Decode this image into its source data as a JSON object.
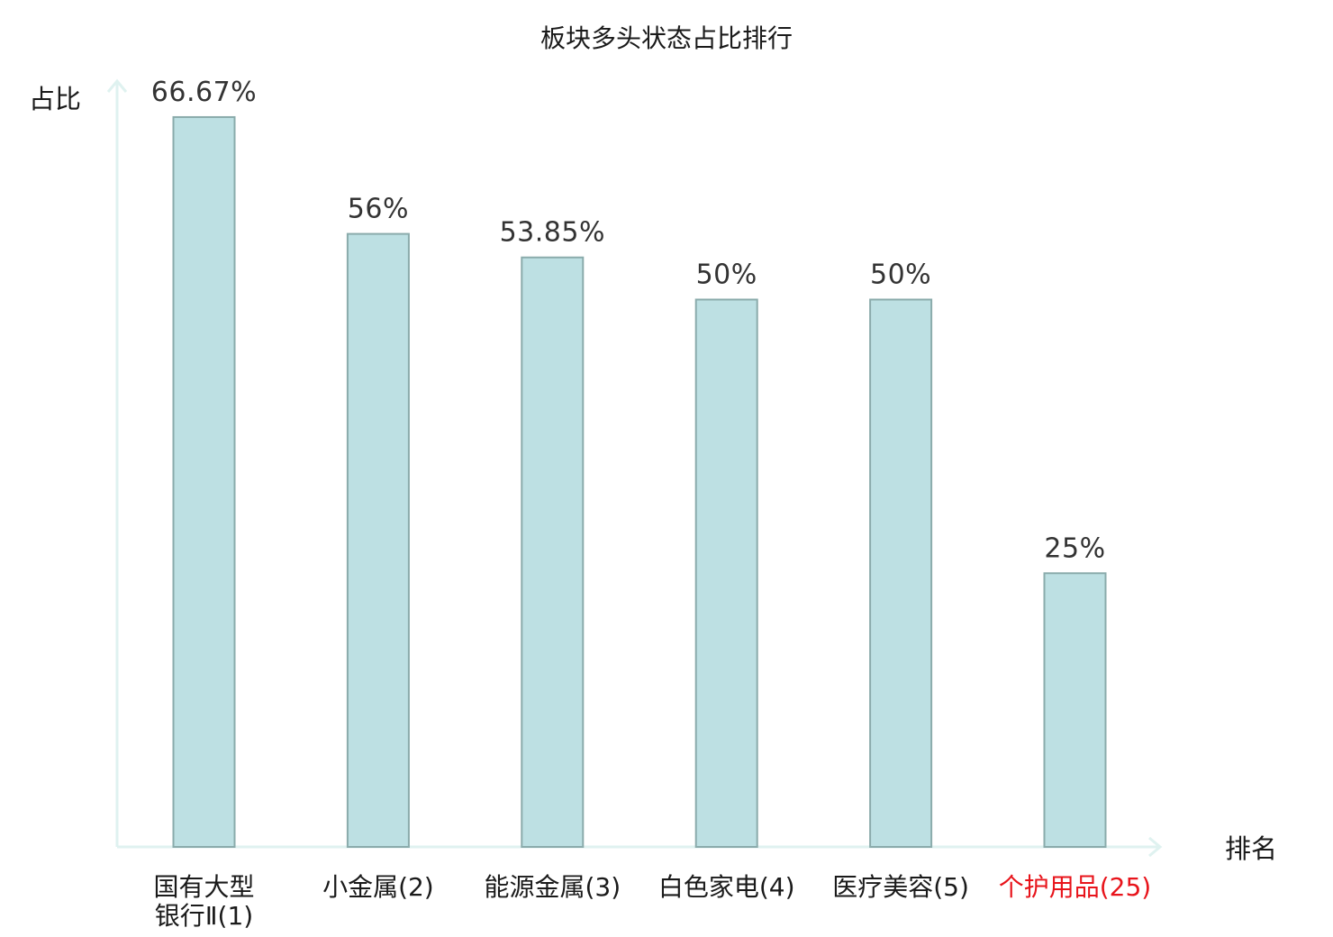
{
  "chart_data": {
    "type": "bar",
    "title": "板块多头状态占比排行",
    "ylabel": "占比",
    "xlabel": "排名",
    "ylim": [
      0,
      70
    ],
    "grid": false,
    "categories": [
      {
        "name_lines": [
          "国有大型",
          "银行Ⅱ(1)"
        ],
        "highlight": false
      },
      {
        "name_lines": [
          "小金属(2)"
        ],
        "highlight": false
      },
      {
        "name_lines": [
          "能源金属(3)"
        ],
        "highlight": false
      },
      {
        "name_lines": [
          "白色家电(4)"
        ],
        "highlight": false
      },
      {
        "name_lines": [
          "医疗美容(5)"
        ],
        "highlight": false
      },
      {
        "name_lines": [
          "个护用品(25)"
        ],
        "highlight": true
      }
    ],
    "values": [
      66.67,
      56,
      53.85,
      50,
      50,
      25
    ],
    "value_labels": [
      "66.67%",
      "56%",
      "53.85%",
      "50%",
      "50%",
      "25%"
    ],
    "colors": {
      "bar_fill": "#bde0e3",
      "bar_stroke": "#8aabab",
      "axis": "#dff2f0",
      "category_text": "#1a1a1a",
      "highlight_text": "#e8141b",
      "value_text": "#333333"
    }
  }
}
